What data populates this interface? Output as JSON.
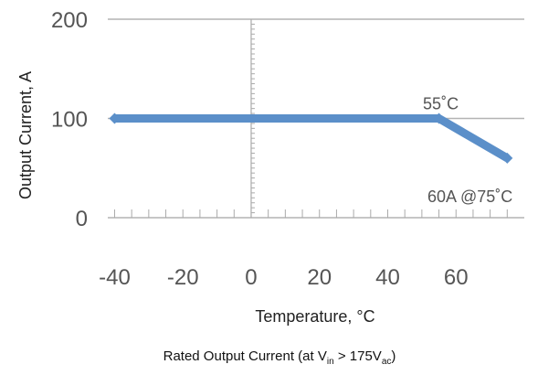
{
  "chart_data": {
    "type": "line",
    "xlabel": "Temperature, °C",
    "ylabel": "Output Current, A",
    "xlim": [
      -42,
      80
    ],
    "ylim": [
      0,
      200
    ],
    "x_ticks": [
      "-40",
      "-20",
      "0",
      "20",
      "40",
      "60"
    ],
    "y_ticks": [
      "0",
      "100",
      "200"
    ],
    "grid": true,
    "series": [
      {
        "x": [
          -40,
          55,
          75
        ],
        "y": [
          100,
          100,
          60
        ]
      }
    ],
    "annotations": [
      {
        "text": "55˚C",
        "x": 55,
        "y": 100
      },
      {
        "text": "60A @75˚C",
        "x": 75,
        "y": 60
      }
    ],
    "colors": {
      "line": "#5b8fc9",
      "grid": "#b3b3b3",
      "axis": "#aaaaaa"
    }
  },
  "caption": {
    "prefix": "Rated Output Current (at V",
    "sub1": "in",
    "middle": " > 175V",
    "sub2": "ac",
    "suffix": ")"
  }
}
